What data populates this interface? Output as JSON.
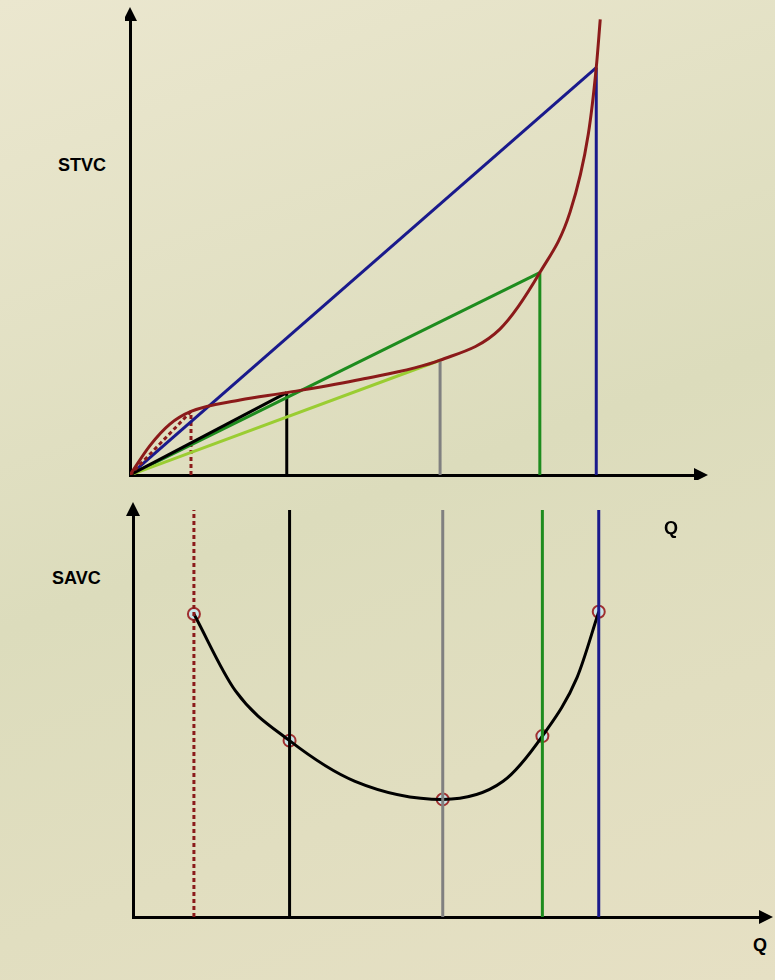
{
  "chart_data": [
    {
      "type": "line",
      "y_label": "STVC",
      "x_label": "Q",
      "xlim": [
        0,
        10
      ],
      "ylim": [
        0,
        10.5
      ],
      "tick_labels": false,
      "grid": false,
      "series": [
        {
          "color": "#8b1a1a",
          "x": [
            0,
            0.35,
            0.7,
            1.07,
            1.93,
            2.75,
            4.04,
            5.44,
            6.49,
            7.19,
            7.72,
            8.04,
            8.18,
            8.25
          ],
          "values": [
            0,
            0.67,
            1.16,
            1.45,
            1.71,
            1.88,
            2.18,
            2.62,
            3.33,
            4.62,
            6.0,
            7.78,
            9.3,
            10.4
          ],
          "line_style": "solid"
        },
        {
          "color": "#8b1a1a",
          "x": [
            0,
            1.07
          ],
          "values": [
            0,
            1.45
          ],
          "line_style": "dotted"
        },
        {
          "color": "#000000",
          "x": [
            0,
            2.75
          ],
          "values": [
            0,
            1.88
          ],
          "line_style": "solid"
        },
        {
          "color": "#9acd32",
          "x": [
            0,
            5.44
          ],
          "values": [
            0,
            2.62
          ],
          "line_style": "solid"
        },
        {
          "color": "#1e8c1e",
          "x": [
            0,
            7.19
          ],
          "values": [
            0,
            4.62
          ],
          "line_style": "solid"
        },
        {
          "color": "#1a1a8c",
          "x": [
            0,
            8.18
          ],
          "values": [
            0,
            9.3
          ],
          "line_style": "solid"
        },
        {
          "color": "#8b1a1a",
          "x": [
            1.07,
            1.07
          ],
          "values": [
            0,
            1.45
          ],
          "line_style": "dotted"
        },
        {
          "color": "#000000",
          "x": [
            2.75,
            2.75
          ],
          "values": [
            0,
            1.88
          ],
          "line_style": "solid"
        },
        {
          "color": "#808080",
          "x": [
            5.44,
            5.44
          ],
          "values": [
            0,
            2.62
          ],
          "line_style": "solid"
        },
        {
          "color": "#1e8c1e",
          "x": [
            7.19,
            7.19
          ],
          "values": [
            0,
            4.62
          ],
          "line_style": "solid"
        },
        {
          "color": "#1a1a8c",
          "x": [
            8.18,
            8.18
          ],
          "values": [
            0,
            9.3
          ],
          "line_style": "solid"
        }
      ]
    },
    {
      "type": "line",
      "y_label": "SAVC",
      "x_label": "Q",
      "xlim": [
        0,
        11.1
      ],
      "ylim": [
        0,
        9
      ],
      "tick_labels": false,
      "grid": false,
      "series": [
        {
          "color": "#8b1a1a",
          "x": [
            1.07,
            1.07
          ],
          "values": [
            0,
            9
          ],
          "line_style": "dotted"
        },
        {
          "color": "#000000",
          "x": [
            2.75,
            2.75
          ],
          "values": [
            0,
            9
          ],
          "line_style": "solid"
        },
        {
          "color": "#808080",
          "x": [
            5.44,
            5.44
          ],
          "values": [
            0,
            9
          ],
          "line_style": "solid"
        },
        {
          "color": "#1e8c1e",
          "x": [
            7.19,
            7.19
          ],
          "values": [
            0,
            9
          ],
          "line_style": "solid"
        },
        {
          "color": "#1a1a8c",
          "x": [
            8.18,
            8.18
          ],
          "values": [
            0,
            9
          ],
          "line_style": "solid"
        },
        {
          "color": "#000000",
          "x": [
            1.07,
            1.8,
            2.75,
            3.9,
            5.44,
            6.5,
            7.19,
            7.8,
            8.18
          ],
          "values": [
            6.7,
            5.0,
            3.9,
            3.0,
            2.6,
            3.0,
            4.0,
            5.3,
            6.75
          ],
          "line_style": "solid"
        },
        {
          "color": "#a03030",
          "x": [
            1.07,
            2.75,
            5.44,
            7.19,
            8.18
          ],
          "values": [
            6.7,
            3.9,
            2.6,
            4.0,
            6.75
          ],
          "marker": "circle",
          "line_style": "none"
        }
      ]
    }
  ]
}
